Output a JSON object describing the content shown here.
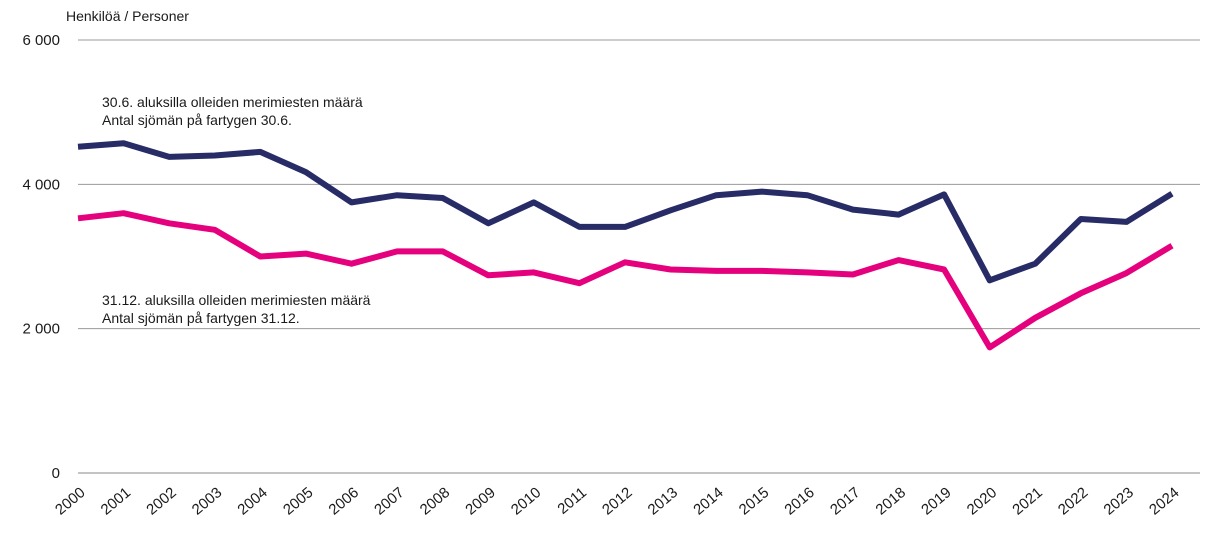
{
  "chart_data": {
    "type": "line",
    "ylabel": "Henkilöä / Personer",
    "ylim": [
      0,
      6000
    ],
    "yticks": [
      0,
      2000,
      4000,
      6000
    ],
    "ytick_labels": [
      "0",
      "2 000",
      "4 000",
      "6 000"
    ],
    "grid": true,
    "categories": [
      "2000",
      "2001",
      "2002",
      "2003",
      "2004",
      "2005",
      "2006",
      "2007",
      "2008",
      "2009",
      "2010",
      "2011",
      "2012",
      "2013",
      "2014",
      "2015",
      "2016",
      "2017",
      "2018",
      "2019",
      "2020",
      "2021",
      "2022",
      "2023",
      "2024"
    ],
    "series": [
      {
        "name": "30.6. aluksilla olleiden merimiesten määrä",
        "name_sv": "Antal sjömän på fartygen 30.6.",
        "color": "#272b66",
        "values": [
          4520,
          4570,
          4380,
          4400,
          4450,
          4170,
          3750,
          3850,
          3810,
          3460,
          3750,
          3410,
          3410,
          3640,
          3850,
          3900,
          3850,
          3650,
          3580,
          3860,
          2670,
          2900,
          3520,
          3480,
          3870
        ]
      },
      {
        "name": "31.12. aluksilla olleiden merimiesten määrä",
        "name_sv": "Antal sjömän på fartygen 31.12.",
        "color": "#e5007d",
        "values": [
          3530,
          3600,
          3460,
          3370,
          3000,
          3040,
          2900,
          3070,
          3070,
          2740,
          2780,
          2630,
          2920,
          2820,
          2800,
          2800,
          2780,
          2750,
          2950,
          2820,
          1740,
          2150,
          2490,
          2770,
          3150
        ]
      }
    ]
  }
}
